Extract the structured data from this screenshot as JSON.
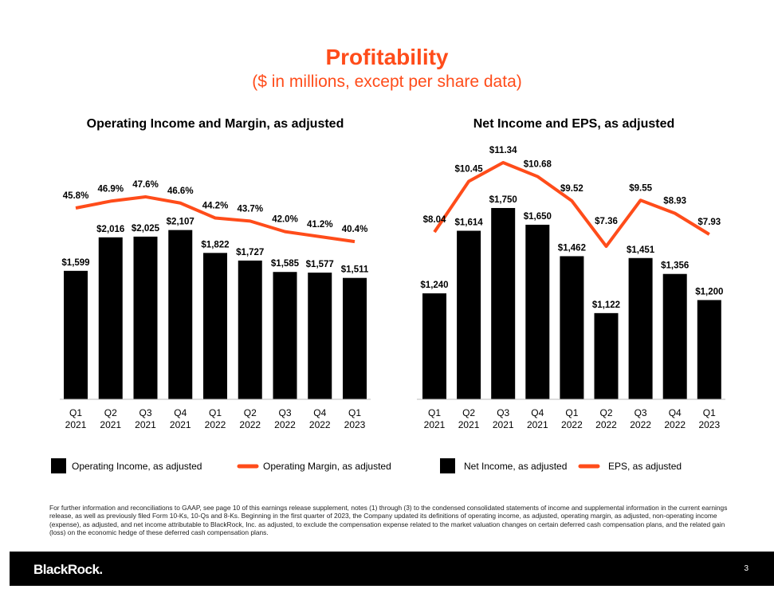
{
  "title": "Profitability",
  "subtitle": "($ in millions, except per share data)",
  "chart_data": [
    {
      "type": "bar+line",
      "title": "Operating Income and Margin, as adjusted",
      "categories": [
        [
          "Q1",
          "2021"
        ],
        [
          "Q2",
          "2021"
        ],
        [
          "Q3",
          "2021"
        ],
        [
          "Q4",
          "2021"
        ],
        [
          "Q1",
          "2022"
        ],
        [
          "Q2",
          "2022"
        ],
        [
          "Q3",
          "2022"
        ],
        [
          "Q4",
          "2022"
        ],
        [
          "Q1",
          "2023"
        ]
      ],
      "series": [
        {
          "name": "Operating Income, as adjusted",
          "type": "bar",
          "values": [
            1599,
            2016,
            2025,
            2107,
            1822,
            1727,
            1585,
            1577,
            1511
          ],
          "labels": [
            "$1,599",
            "$2,016",
            "$2,025",
            "$2,107",
            "$1,822",
            "$1,727",
            "$1,585",
            "$1,577",
            "$1,511"
          ],
          "color": "#000000"
        },
        {
          "name": "Operating Margin, as adjusted",
          "type": "line",
          "values": [
            45.8,
            46.9,
            47.6,
            46.6,
            44.2,
            43.7,
            42.0,
            41.2,
            40.4
          ],
          "labels": [
            "45.8%",
            "46.9%",
            "47.6%",
            "46.6%",
            "44.2%",
            "43.7%",
            "42.0%",
            "41.2%",
            "40.4%"
          ],
          "color": "#ff4c1a"
        }
      ]
    },
    {
      "type": "bar+line",
      "title": "Net Income and EPS, as adjusted",
      "categories": [
        [
          "Q1",
          "2021"
        ],
        [
          "Q2",
          "2021"
        ],
        [
          "Q3",
          "2021"
        ],
        [
          "Q4",
          "2021"
        ],
        [
          "Q1",
          "2022"
        ],
        [
          "Q2",
          "2022"
        ],
        [
          "Q3",
          "2022"
        ],
        [
          "Q4",
          "2022"
        ],
        [
          "Q1",
          "2023"
        ]
      ],
      "series": [
        {
          "name": "Net Income, as adjusted",
          "type": "bar",
          "values": [
            1240,
            1614,
            1750,
            1650,
            1462,
            1122,
            1451,
            1356,
            1200
          ],
          "labels": [
            "$1,240",
            "$1,614",
            "$1,750",
            "$1,650",
            "$1,462",
            "$1,122",
            "$1,451",
            "$1,356",
            "$1,200"
          ],
          "color": "#000000"
        },
        {
          "name": "EPS, as adjusted",
          "type": "line",
          "values": [
            8.04,
            10.45,
            11.34,
            10.68,
            9.52,
            7.36,
            9.55,
            8.93,
            7.93
          ],
          "labels": [
            "$8.04",
            "$10.45",
            "$11.34",
            "$10.68",
            "$9.52",
            "$7.36",
            "$9.55",
            "$8.93",
            "$7.93"
          ],
          "color": "#ff4c1a"
        }
      ]
    }
  ],
  "footnote": "For further information and reconciliations to GAAP, see page 10 of this earnings release supplement, notes (1) through (3) to the condensed consolidated statements of income and supplemental information in the current earnings release, as well as previously filed Form 10-Ks, 10-Qs and 8-Ks. Beginning in the first quarter of 2023, the Company updated its definitions of operating income, as adjusted, operating margin, as adjusted, non-operating income (expense), as adjusted, and net income attributable to BlackRock, Inc. as adjusted, to exclude the compensation expense related to the market valuation changes on certain deferred cash compensation plans, and the related gain (loss) on the economic hedge of these deferred cash compensation plans.",
  "logo": "BlackRock.",
  "page_number": "3"
}
